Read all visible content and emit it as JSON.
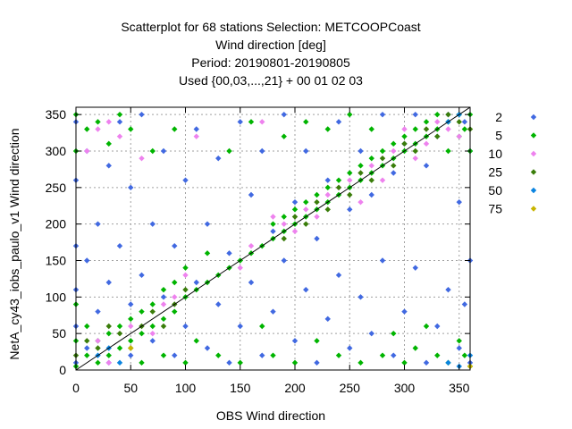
{
  "chart_data": {
    "type": "scatter",
    "title_lines": [
      "Scatterplot for   68 stations Selection: METCOOPCoast",
      "Wind direction [deg]",
      "Period: 20190801-20190805",
      "Used {00,03,...,21} + 00 01 02 03"
    ],
    "xlabel": "OBS Wind direction",
    "ylabel": "NetA_cy43_iobs_paulo_v1 Wind direction",
    "xlim": [
      0,
      360
    ],
    "ylim": [
      0,
      360
    ],
    "xticks": [
      0,
      50,
      100,
      150,
      200,
      250,
      300,
      350
    ],
    "yticks": [
      0,
      50,
      100,
      150,
      200,
      250,
      300,
      350
    ],
    "grid": true,
    "diagonal_line": true,
    "legend_position": "right",
    "legend": [
      {
        "label": "2",
        "color": "#4169e1"
      },
      {
        "label": "5",
        "color": "#00b400"
      },
      {
        "label": "10",
        "color": "#ee82ee"
      },
      {
        "label": "25",
        "color": "#3a7d0a"
      },
      {
        "label": "50",
        "color": "#0a84e0"
      },
      {
        "label": "75",
        "color": "#c8b400"
      }
    ],
    "series": [
      {
        "name": "2",
        "points": [
          [
            0,
            10
          ],
          [
            0,
            60
          ],
          [
            0,
            110
          ],
          [
            0,
            170
          ],
          [
            0,
            260
          ],
          [
            0,
            340
          ],
          [
            10,
            30
          ],
          [
            10,
            150
          ],
          [
            10,
            300
          ],
          [
            20,
            80
          ],
          [
            20,
            200
          ],
          [
            30,
            10
          ],
          [
            30,
            120
          ],
          [
            30,
            280
          ],
          [
            40,
            170
          ],
          [
            40,
            340
          ],
          [
            50,
            20
          ],
          [
            50,
            90
          ],
          [
            50,
            250
          ],
          [
            60,
            130
          ],
          [
            60,
            350
          ],
          [
            70,
            40
          ],
          [
            70,
            200
          ],
          [
            80,
            100
          ],
          [
            80,
            300
          ],
          [
            90,
            20
          ],
          [
            90,
            170
          ],
          [
            100,
            60
          ],
          [
            100,
            260
          ],
          [
            110,
            120
          ],
          [
            110,
            330
          ],
          [
            120,
            30
          ],
          [
            120,
            200
          ],
          [
            130,
            90
          ],
          [
            130,
            290
          ],
          [
            140,
            10
          ],
          [
            140,
            160
          ],
          [
            150,
            60
          ],
          [
            150,
            340
          ],
          [
            160,
            120
          ],
          [
            160,
            240
          ],
          [
            170,
            20
          ],
          [
            170,
            300
          ],
          [
            180,
            80
          ],
          [
            180,
            190
          ],
          [
            190,
            150
          ],
          [
            190,
            350
          ],
          [
            200,
            40
          ],
          [
            200,
            230
          ],
          [
            210,
            110
          ],
          [
            210,
            300
          ],
          [
            220,
            10
          ],
          [
            220,
            180
          ],
          [
            230,
            70
          ],
          [
            230,
            260
          ],
          [
            240,
            130
          ],
          [
            240,
            340
          ],
          [
            250,
            30
          ],
          [
            250,
            220
          ],
          [
            260,
            100
          ],
          [
            260,
            300
          ],
          [
            270,
            50
          ],
          [
            270,
            240
          ],
          [
            280,
            150
          ],
          [
            280,
            350
          ],
          [
            290,
            20
          ],
          [
            290,
            270
          ],
          [
            300,
            80
          ],
          [
            300,
            310
          ],
          [
            310,
            140
          ],
          [
            310,
            350
          ],
          [
            320,
            10
          ],
          [
            320,
            280
          ],
          [
            330,
            60
          ],
          [
            330,
            320
          ],
          [
            340,
            110
          ],
          [
            340,
            350
          ],
          [
            350,
            30
          ],
          [
            350,
            230
          ],
          [
            355,
            90
          ],
          [
            355,
            340
          ],
          [
            360,
            10
          ],
          [
            360,
            150
          ],
          [
            360,
            300
          ]
        ]
      },
      {
        "name": "5",
        "points": [
          [
            0,
            5
          ],
          [
            0,
            40
          ],
          [
            0,
            90
          ],
          [
            0,
            300
          ],
          [
            0,
            350
          ],
          [
            10,
            20
          ],
          [
            10,
            60
          ],
          [
            10,
            330
          ],
          [
            20,
            10
          ],
          [
            20,
            40
          ],
          [
            20,
            340
          ],
          [
            30,
            20
          ],
          [
            30,
            50
          ],
          [
            30,
            310
          ],
          [
            40,
            30
          ],
          [
            40,
            60
          ],
          [
            40,
            350
          ],
          [
            50,
            40
          ],
          [
            50,
            70
          ],
          [
            50,
            330
          ],
          [
            60,
            50
          ],
          [
            60,
            80
          ],
          [
            60,
            10
          ],
          [
            70,
            60
          ],
          [
            70,
            90
          ],
          [
            70,
            300
          ],
          [
            80,
            70
          ],
          [
            80,
            110
          ],
          [
            80,
            20
          ],
          [
            90,
            80
          ],
          [
            90,
            120
          ],
          [
            90,
            330
          ],
          [
            100,
            100
          ],
          [
            100,
            140
          ],
          [
            100,
            10
          ],
          [
            110,
            110
          ],
          [
            110,
            40
          ],
          [
            120,
            120
          ],
          [
            120,
            160
          ],
          [
            130,
            130
          ],
          [
            130,
            20
          ],
          [
            140,
            140
          ],
          [
            140,
            300
          ],
          [
            150,
            150
          ],
          [
            150,
            10
          ],
          [
            160,
            160
          ],
          [
            160,
            340
          ],
          [
            170,
            170
          ],
          [
            170,
            60
          ],
          [
            180,
            180
          ],
          [
            180,
            200
          ],
          [
            180,
            20
          ],
          [
            190,
            190
          ],
          [
            190,
            210
          ],
          [
            190,
            320
          ],
          [
            200,
            200
          ],
          [
            200,
            220
          ],
          [
            200,
            10
          ],
          [
            210,
            210
          ],
          [
            210,
            230
          ],
          [
            210,
            340
          ],
          [
            220,
            220
          ],
          [
            220,
            240
          ],
          [
            220,
            40
          ],
          [
            230,
            230
          ],
          [
            230,
            250
          ],
          [
            230,
            330
          ],
          [
            240,
            240
          ],
          [
            240,
            260
          ],
          [
            240,
            20
          ],
          [
            250,
            250
          ],
          [
            250,
            270
          ],
          [
            250,
            350
          ],
          [
            260,
            260
          ],
          [
            260,
            280
          ],
          [
            260,
            10
          ],
          [
            270,
            270
          ],
          [
            270,
            290
          ],
          [
            270,
            330
          ],
          [
            280,
            280
          ],
          [
            280,
            300
          ],
          [
            280,
            20
          ],
          [
            290,
            290
          ],
          [
            290,
            310
          ],
          [
            290,
            50
          ],
          [
            300,
            300
          ],
          [
            300,
            320
          ],
          [
            300,
            10
          ],
          [
            310,
            310
          ],
          [
            310,
            330
          ],
          [
            310,
            30
          ],
          [
            320,
            320
          ],
          [
            320,
            340
          ],
          [
            320,
            60
          ],
          [
            330,
            330
          ],
          [
            330,
            350
          ],
          [
            330,
            20
          ],
          [
            340,
            340
          ],
          [
            340,
            300
          ],
          [
            340,
            10
          ],
          [
            350,
            350
          ],
          [
            350,
            320
          ],
          [
            350,
            40
          ],
          [
            355,
            330
          ],
          [
            355,
            20
          ],
          [
            360,
            350
          ],
          [
            360,
            300
          ],
          [
            360,
            5
          ]
        ]
      },
      {
        "name": "10",
        "points": [
          [
            10,
            300
          ],
          [
            20,
            330
          ],
          [
            20,
            40
          ],
          [
            30,
            340
          ],
          [
            30,
            10
          ],
          [
            40,
            320
          ],
          [
            50,
            60
          ],
          [
            60,
            290
          ],
          [
            70,
            50
          ],
          [
            80,
            90
          ],
          [
            90,
            100
          ],
          [
            100,
            130
          ],
          [
            110,
            320
          ],
          [
            150,
            140
          ],
          [
            160,
            170
          ],
          [
            170,
            340
          ],
          [
            180,
            210
          ],
          [
            190,
            200
          ],
          [
            200,
            190
          ],
          [
            210,
            220
          ],
          [
            220,
            210
          ],
          [
            230,
            240
          ],
          [
            240,
            250
          ],
          [
            250,
            260
          ],
          [
            260,
            230
          ],
          [
            270,
            280
          ],
          [
            280,
            260
          ],
          [
            290,
            300
          ],
          [
            300,
            330
          ],
          [
            310,
            290
          ],
          [
            320,
            310
          ],
          [
            330,
            340
          ],
          [
            340,
            330
          ],
          [
            350,
            320
          ]
        ]
      },
      {
        "name": "25",
        "points": [
          [
            0,
            20
          ],
          [
            10,
            40
          ],
          [
            20,
            30
          ],
          [
            30,
            60
          ],
          [
            40,
            50
          ],
          [
            50,
            30
          ],
          [
            60,
            60
          ],
          [
            70,
            80
          ],
          [
            80,
            60
          ],
          [
            90,
            90
          ],
          [
            100,
            110
          ],
          [
            190,
            180
          ],
          [
            200,
            210
          ],
          [
            210,
            200
          ],
          [
            220,
            230
          ],
          [
            230,
            220
          ],
          [
            240,
            250
          ],
          [
            250,
            240
          ],
          [
            260,
            270
          ],
          [
            270,
            260
          ],
          [
            280,
            290
          ],
          [
            290,
            280
          ],
          [
            300,
            310
          ],
          [
            310,
            300
          ],
          [
            320,
            330
          ],
          [
            330,
            320
          ],
          [
            340,
            350
          ],
          [
            350,
            340
          ],
          [
            360,
            330
          ]
        ]
      },
      {
        "name": "50",
        "points": [
          [
            20,
            20
          ],
          [
            30,
            30
          ],
          [
            40,
            10
          ],
          [
            340,
            10
          ],
          [
            350,
            5
          ],
          [
            360,
            20
          ],
          [
            340,
            340
          ],
          [
            350,
            350
          ]
        ]
      },
      {
        "name": "75",
        "points": [
          [
            50,
            30
          ],
          [
            360,
            5
          ]
        ]
      }
    ]
  }
}
